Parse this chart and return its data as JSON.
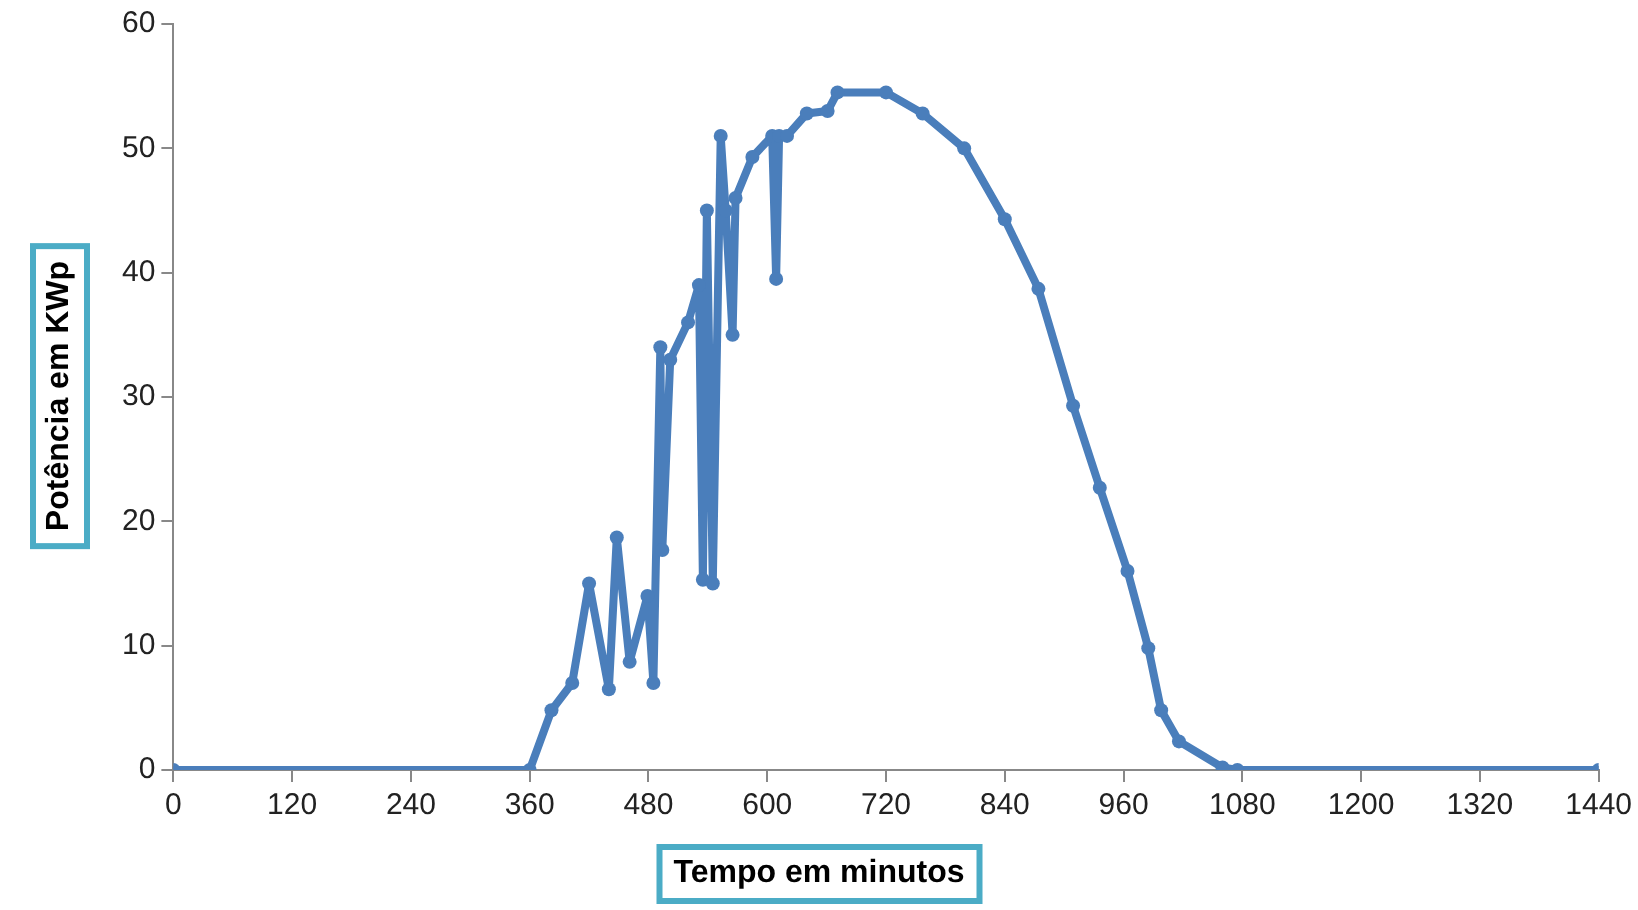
{
  "chart_data": {
    "type": "line",
    "xlabel": "Tempo em minutos",
    "ylabel": "Potência em KWp",
    "x": [
      0,
      360,
      382,
      403,
      420,
      440,
      448,
      461,
      479,
      485,
      492,
      494,
      502,
      520,
      531,
      535,
      539,
      545,
      553,
      558,
      565,
      568,
      585,
      605,
      609,
      612,
      620,
      640,
      661,
      671,
      720,
      757,
      799,
      840,
      874,
      909,
      936,
      964,
      985,
      998,
      1016,
      1060,
      1075,
      1440
    ],
    "series": [
      {
        "color": "#4a7ebb",
        "values": [
          0,
          0,
          4.8,
          7,
          15,
          6.5,
          18.7,
          8.7,
          14,
          7,
          34,
          17.7,
          33,
          36,
          39,
          15.3,
          45,
          15,
          51,
          45,
          35,
          46,
          49.3,
          51,
          39.5,
          51,
          51,
          52.8,
          53,
          54.5,
          54.5,
          52.8,
          50,
          44.3,
          38.7,
          29.3,
          22.7,
          16,
          9.8,
          4.8,
          2.3,
          0.2,
          0,
          0
        ]
      }
    ],
    "xlim": [
      0,
      1440
    ],
    "xticks": [
      0,
      120,
      240,
      360,
      480,
      600,
      720,
      840,
      960,
      1080,
      1200,
      1320,
      1440
    ],
    "ylim": [
      0,
      60
    ],
    "yticks": [
      0,
      10,
      20,
      30,
      40,
      50,
      60
    ],
    "grid": false,
    "legend": false,
    "marker": "circle",
    "line_style": "solid"
  }
}
